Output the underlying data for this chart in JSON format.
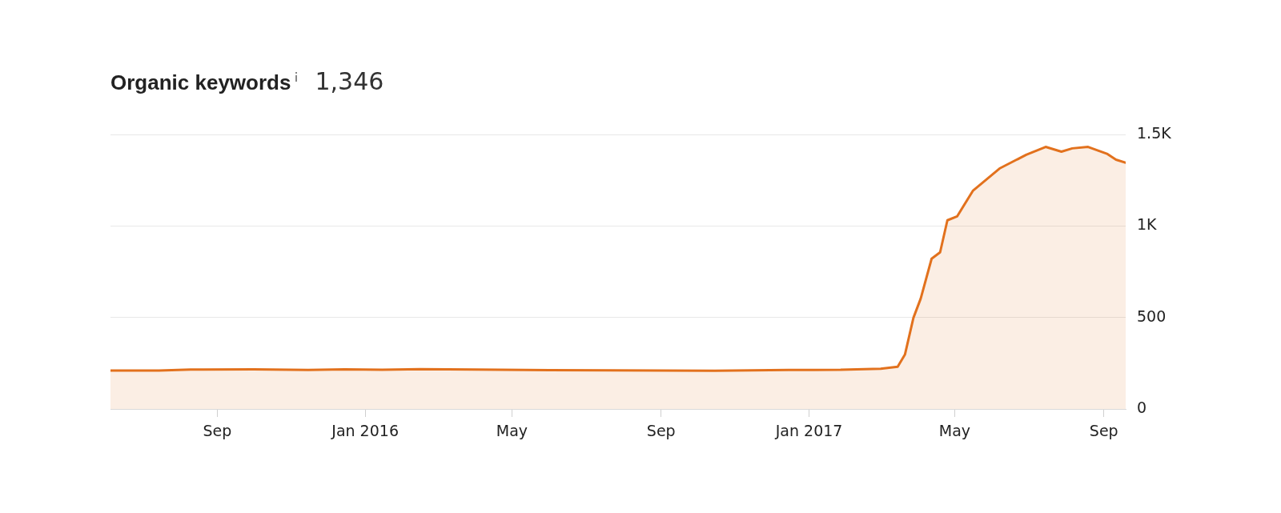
{
  "chart_data": {
    "type": "area",
    "title": "Organic keywords",
    "subtitle": "1,346",
    "x": [
      "2015-06-05",
      "2015-07-15",
      "2015-08-10",
      "2015-10-01",
      "2015-11-15",
      "2015-12-15",
      "2016-01-15",
      "2016-02-15",
      "2016-04-01",
      "2016-06-01",
      "2016-09-01",
      "2016-10-15",
      "2016-12-15",
      "2017-01-27",
      "2017-03-01",
      "2017-03-15",
      "2017-03-21",
      "2017-03-28",
      "2017-04-03",
      "2017-04-12",
      "2017-04-19",
      "2017-04-25",
      "2017-05-03",
      "2017-05-16",
      "2017-06-07",
      "2017-06-29",
      "2017-07-15",
      "2017-07-28",
      "2017-08-06",
      "2017-08-19",
      "2017-09-04",
      "2017-09-11",
      "2017-09-19"
    ],
    "series": [
      {
        "color": "#e2711d",
        "values": [
          210,
          210,
          215,
          216,
          213,
          217,
          214,
          218,
          215,
          212,
          210,
          209,
          213,
          214,
          220,
          231,
          297,
          498,
          603,
          821,
          856,
          1031,
          1052,
          1192,
          1314,
          1389,
          1432,
          1406,
          1424,
          1432,
          1393,
          1362,
          1346
        ]
      }
    ],
    "xlim": [
      "2015-06-05",
      "2017-09-19"
    ],
    "xticks": [
      {
        "value": "2015-09-01",
        "label": "Sep"
      },
      {
        "value": "2016-01-01",
        "label": "Jan 2016"
      },
      {
        "value": "2016-05-01",
        "label": "May"
      },
      {
        "value": "2016-09-01",
        "label": "Sep"
      },
      {
        "value": "2017-01-01",
        "label": "Jan 2017"
      },
      {
        "value": "2017-05-01",
        "label": "May"
      },
      {
        "value": "2017-09-01",
        "label": "Sep"
      }
    ],
    "ylim": [
      0,
      1500
    ],
    "yticks": [
      0,
      500,
      {
        "value": 1000,
        "label": "1K"
      },
      {
        "value": 1500,
        "label": "1.5K"
      }
    ],
    "grid": "y",
    "legend": false
  }
}
